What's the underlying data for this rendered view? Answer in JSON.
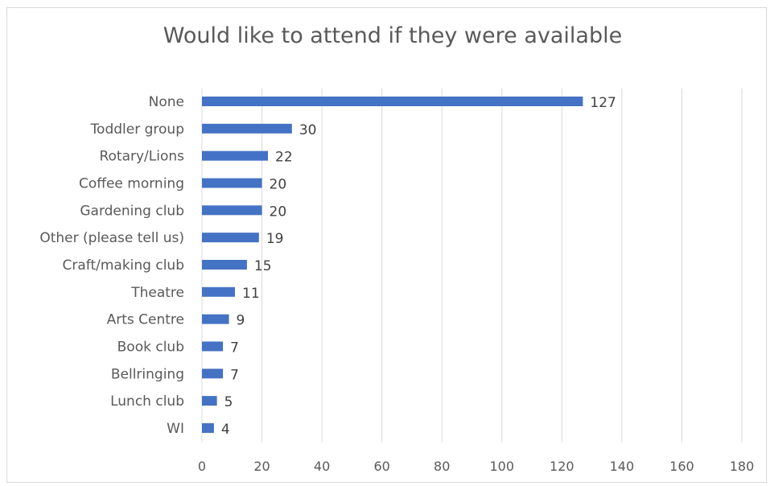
{
  "chart_data": {
    "type": "bar",
    "orientation": "horizontal",
    "title": "Would like to attend if they were available",
    "xlabel": "",
    "ylabel": "",
    "categories": [
      "None",
      "Toddler group",
      "Rotary/Lions",
      "Coffee morning",
      "Gardening club",
      "Other (please tell us)",
      "Craft/making club",
      "Theatre",
      "Arts Centre",
      "Book club",
      "Bellringing",
      "Lunch club",
      "WI"
    ],
    "values": [
      127,
      30,
      22,
      20,
      20,
      19,
      15,
      11,
      9,
      7,
      7,
      5,
      4
    ],
    "xlim": [
      0,
      180
    ],
    "xticks": [
      0,
      20,
      40,
      60,
      80,
      100,
      120,
      140,
      160,
      180
    ],
    "grid": "vertical",
    "legend": "none",
    "bar_color": "#4472c4",
    "grid_color": "#d9d9d9"
  }
}
